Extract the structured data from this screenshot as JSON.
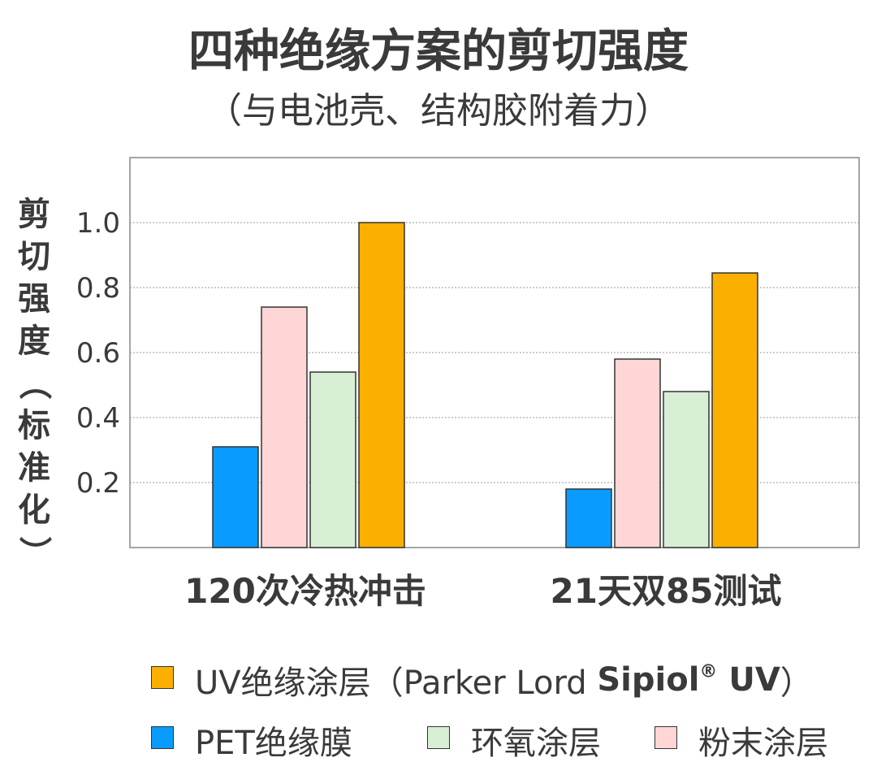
{
  "title": "四种绝缘方案的剪切强度",
  "subtitle": "（与电池壳、结构胶附着力）",
  "colors": {
    "uv": "#FBB000",
    "pet": "#0A9BFF",
    "epoxy": "#D9EFD5",
    "powder": "#FFD6D6",
    "grid": "#999999",
    "frame": "#888888"
  },
  "chart_data": {
    "type": "bar",
    "title": "四种绝缘方案的剪切强度",
    "subtitle": "（与电池壳、结构胶附着力）",
    "ylabel_chars": [
      "剪",
      "切",
      "强",
      "度",
      "（",
      "标",
      "准",
      "化",
      "）"
    ],
    "categories": [
      "120次冷热冲击",
      "21天双85测试"
    ],
    "ylim": [
      0,
      1.2
    ],
    "yticks": [
      0.2,
      0.4,
      0.6,
      0.8,
      1.0
    ],
    "ytick_labels": [
      "0.2",
      "0.4",
      "0.6",
      "0.8",
      "1.0"
    ],
    "grid": true,
    "series": [
      {
        "name": "PET绝缘膜",
        "color": "#0A9BFF",
        "values": [
          0.31,
          0.18
        ]
      },
      {
        "name": "粉末涂层",
        "color": "#FFD6D6",
        "values": [
          0.74,
          0.58
        ]
      },
      {
        "name": "环氧涂层",
        "color": "#D9EFD5",
        "values": [
          0.54,
          0.48
        ]
      },
      {
        "name": "UV绝缘涂层",
        "color": "#FBB000",
        "values": [
          1.0,
          0.845
        ]
      }
    ],
    "legend_position": "bottom"
  },
  "legend": {
    "uv_label": "UV绝缘涂层",
    "uv_note_prefix": "（Parker Lord ",
    "uv_note_brand": "Sipiol",
    "uv_note_reg": "®",
    "uv_note_suffix_bold": " UV",
    "uv_note_close": "）",
    "pet_label": "PET绝缘膜",
    "epoxy_label": "环氧涂层",
    "powder_label": "粉末涂层"
  }
}
